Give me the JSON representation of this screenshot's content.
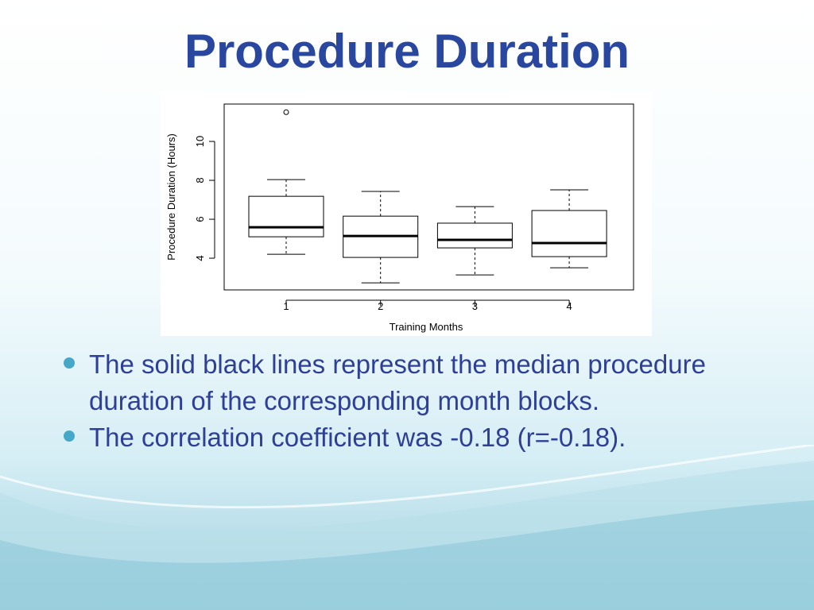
{
  "slide": {
    "title": "Procedure Duration",
    "bullets": [
      "The solid black lines represent the median procedure duration of the corresponding month blocks.",
      "The correlation coefficient was -0.18 (r=-0.18)."
    ]
  },
  "chart_data": {
    "type": "box",
    "x_label": "Training Months",
    "y_label": "Procedure Duration (Hours)",
    "categories": [
      "1",
      "2",
      "3",
      "4"
    ],
    "whisker_low": [
      4.2,
      2.73,
      3.14,
      3.51
    ],
    "q1": [
      5.1,
      4.04,
      4.53,
      4.08
    ],
    "median": [
      5.59,
      5.14,
      4.94,
      4.78
    ],
    "q3": [
      7.18,
      6.16,
      5.8,
      6.45
    ],
    "whisker_high": [
      8.04,
      7.43,
      6.65,
      7.51
    ],
    "outliers": [
      [
        11.5
      ],
      [],
      [],
      []
    ],
    "ylim": [
      2.37,
      11.92
    ],
    "yticks": [
      4,
      6,
      8,
      10
    ],
    "color": "#000000"
  }
}
